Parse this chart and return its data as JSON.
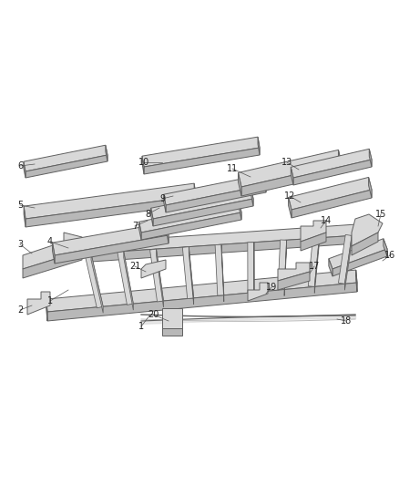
{
  "bg_color": "#ffffff",
  "line_color": "#606060",
  "fill_light": "#d8d8d8",
  "fill_mid": "#b8b8b8",
  "fill_dark": "#909090",
  "label_color": "#222222",
  "figsize": [
    4.38,
    5.33
  ],
  "dpi": 100
}
